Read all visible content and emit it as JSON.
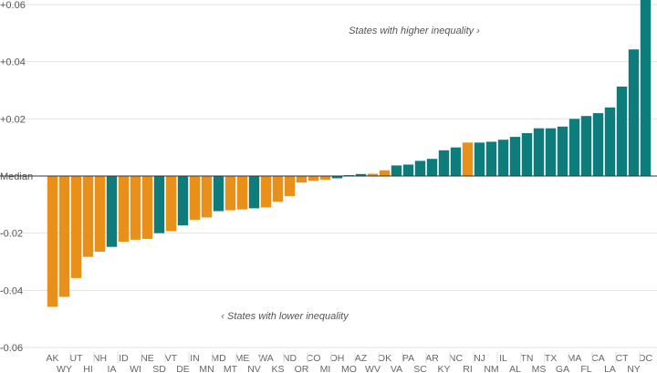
{
  "chart_data": {
    "type": "bar",
    "ylim": [
      -0.06,
      0.06
    ],
    "yticks": [
      {
        "value": 0.06,
        "label": "+0.06"
      },
      {
        "value": 0.04,
        "label": "+0.04"
      },
      {
        "value": 0.02,
        "label": "+0.02"
      },
      {
        "value": 0,
        "label": "Median"
      },
      {
        "value": -0.02,
        "label": "-0.02"
      },
      {
        "value": -0.04,
        "label": "-0.04"
      },
      {
        "value": -0.06,
        "label": "-0.06"
      }
    ],
    "grid": true,
    "colors": {
      "orange": "#E8901A",
      "teal": "#0E7C7B"
    },
    "annotations": {
      "higher": "States with higher inequality ›",
      "lower": "‹ States with lower inequality"
    },
    "categories": [
      "AK",
      "WY",
      "UT",
      "HI",
      "NH",
      "IA",
      "ID",
      "WI",
      "NE",
      "SD",
      "VT",
      "DE",
      "IN",
      "MN",
      "MD",
      "MT",
      "ME",
      "NV",
      "WA",
      "KS",
      "ND",
      "OR",
      "CO",
      "MI",
      "OH",
      "MO",
      "AZ",
      "WV",
      "OK",
      "VA",
      "PA",
      "SC",
      "AR",
      "KY",
      "NC",
      "RI",
      "NJ",
      "NM",
      "IL",
      "AL",
      "TN",
      "MS",
      "TX",
      "GA",
      "MA",
      "FL",
      "CA",
      "LA",
      "CT",
      "NY",
      "DC"
    ],
    "values": [
      -0.0458,
      -0.0423,
      -0.0357,
      -0.0283,
      -0.0265,
      -0.0248,
      -0.023,
      -0.0223,
      -0.022,
      -0.02,
      -0.0193,
      -0.0173,
      -0.0153,
      -0.0145,
      -0.0123,
      -0.012,
      -0.0117,
      -0.0113,
      -0.011,
      -0.009,
      -0.007,
      -0.0023,
      -0.0017,
      -0.0013,
      -0.0008,
      0.0003,
      0.0007,
      0.0008,
      0.002,
      0.0037,
      0.004,
      0.0053,
      0.006,
      0.009,
      0.01,
      0.0117,
      0.0117,
      0.012,
      0.0127,
      0.0137,
      0.015,
      0.0167,
      0.0167,
      0.0173,
      0.02,
      0.021,
      0.022,
      0.024,
      0.0313,
      0.0443,
      0.062
    ],
    "bar_colors": [
      "orange",
      "orange",
      "orange",
      "orange",
      "orange",
      "teal",
      "orange",
      "orange",
      "orange",
      "teal",
      "orange",
      "teal",
      "orange",
      "orange",
      "teal",
      "orange",
      "orange",
      "teal",
      "orange",
      "orange",
      "orange",
      "orange",
      "orange",
      "orange",
      "teal",
      "teal",
      "teal",
      "orange",
      "orange",
      "teal",
      "teal",
      "teal",
      "teal",
      "teal",
      "teal",
      "orange",
      "teal",
      "teal",
      "teal",
      "teal",
      "teal",
      "teal",
      "teal",
      "teal",
      "teal",
      "teal",
      "teal",
      "teal",
      "teal",
      "teal",
      "teal"
    ]
  }
}
